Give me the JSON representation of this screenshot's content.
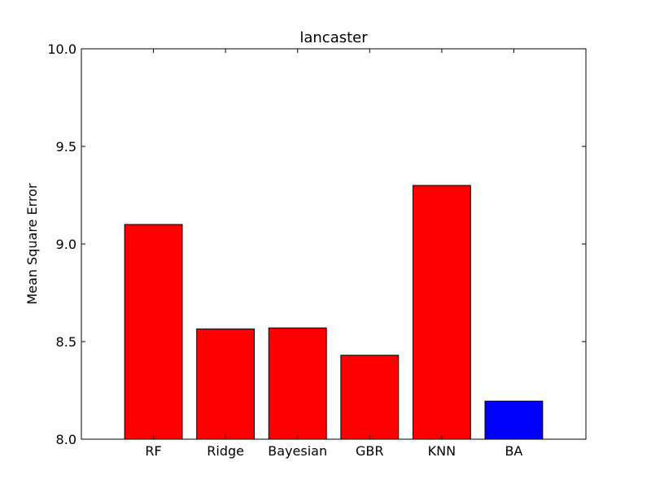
{
  "chart_data": {
    "type": "bar",
    "title": "lancaster",
    "xlabel": "",
    "ylabel": "Mean Square Error",
    "categories": [
      "RF",
      "Ridge",
      "Bayesian",
      "GBR",
      "KNN",
      "BA"
    ],
    "values": [
      9.1,
      8.565,
      8.57,
      8.43,
      9.3,
      8.195
    ],
    "bar_colors": [
      "#ff0000",
      "#ff0000",
      "#ff0000",
      "#ff0000",
      "#ff0000",
      "#0000ff"
    ],
    "ylim": [
      8.0,
      10.0
    ],
    "yticks": [
      "8.0",
      "8.5",
      "9.0",
      "9.5",
      "10.0"
    ],
    "ytick_values": [
      8.0,
      8.5,
      9.0,
      9.5,
      10.0
    ],
    "grid": false,
    "legend": "none"
  }
}
